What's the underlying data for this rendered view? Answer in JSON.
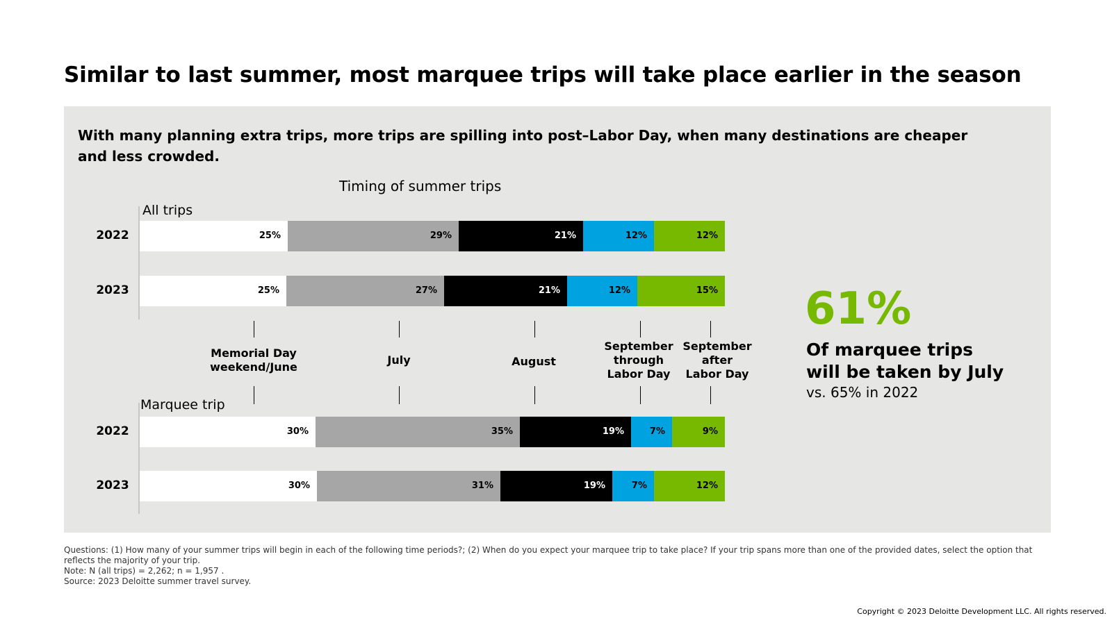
{
  "title": "Similar to last summer, most marquee trips will take place earlier in the season",
  "subtitle": "With many planning extra trips, more trips are spilling into post–Labor Day, when many destinations are cheaper and less crowded.",
  "chart_data": {
    "type": "bar",
    "orientation": "horizontal-stacked",
    "title": "Timing of summer trips",
    "categories": [
      "Memorial Day weekend/June",
      "July",
      "August",
      "September through Labor Day",
      "September after Labor Day"
    ],
    "colors": [
      "#ffffff",
      "#a6a6a6",
      "#000000",
      "#00a3e0",
      "#76b900"
    ],
    "label_colors": [
      "#000000",
      "#000000",
      "#ffffff",
      "#000000",
      "#000000"
    ],
    "groups": [
      {
        "name": "All trips",
        "rows": [
          {
            "year": "2022",
            "values": [
              25,
              29,
              21,
              12,
              12
            ],
            "labels": [
              "25%",
              "29%",
              "21%",
              "12%",
              "12%"
            ]
          },
          {
            "year": "2023",
            "values": [
              25,
              27,
              21,
              12,
              15
            ],
            "labels": [
              "25%",
              "27%",
              "21%",
              "12%",
              "15%"
            ]
          }
        ]
      },
      {
        "name": "Marquee trip",
        "rows": [
          {
            "year": "2022",
            "values": [
              30,
              35,
              19,
              7,
              9
            ],
            "labels": [
              "30%",
              "35%",
              "19%",
              "7%",
              "9%"
            ]
          },
          {
            "year": "2023",
            "values": [
              30,
              31,
              19,
              7,
              12
            ],
            "labels": [
              "30%",
              "31%",
              "19%",
              "7%",
              "12%"
            ]
          }
        ]
      }
    ]
  },
  "category_labels": [
    [
      "Memorial Day",
      "weekend/June"
    ],
    [
      "July"
    ],
    [
      "August"
    ],
    [
      "September",
      "through",
      "Labor Day"
    ],
    [
      "September",
      "after",
      "Labor Day"
    ]
  ],
  "callout": {
    "value": "61%",
    "text_line1": "Of marquee trips",
    "text_line2": "will be taken by July",
    "sub": "vs. 65% in 2022"
  },
  "notes": {
    "questions": "Questions: (1) How many of your summer trips will begin in each of the following time periods?; (2) When do you expect your marquee trip to take place? If your trip spans more than one of the provided dates, select the option that reflects the majority of your trip.",
    "note": "Note: N (all trips) = 2,262; n = 1,957 .",
    "source": "Source: 2023 Deloitte summer travel survey."
  },
  "copyright": "Copyright © 2023 Deloitte Development LLC. All rights reserved."
}
